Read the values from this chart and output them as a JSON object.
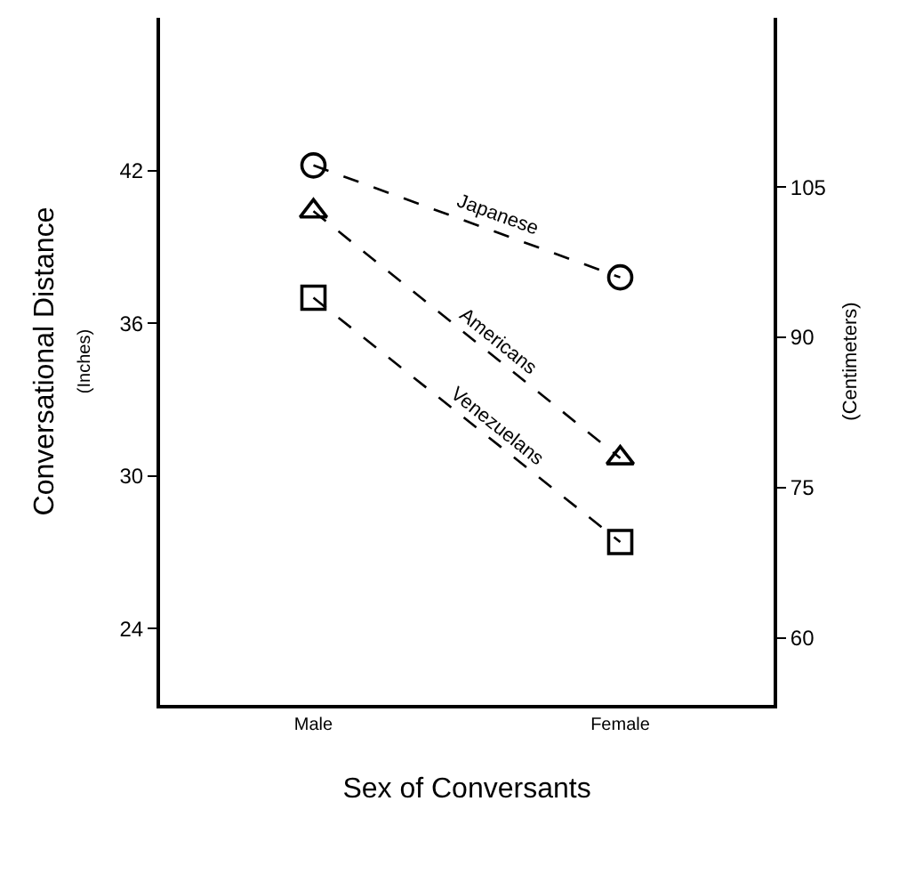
{
  "chart_data": {
    "type": "line",
    "categories": [
      "Male",
      "Female"
    ],
    "xlabel": "Sex of Conversants",
    "ylabel": "Conversational Distance\n(Inches)",
    "y2label": "(Centimeters)",
    "ylim": [
      21,
      48
    ],
    "yticks": [
      24,
      30,
      36,
      42
    ],
    "y2lim": [
      53.3,
      121.9
    ],
    "y2ticks": [
      60,
      75,
      90,
      105
    ],
    "line_style": "dashed",
    "legend": false,
    "series": [
      {
        "name": "Japanese",
        "color": "#000000",
        "marker": "circle",
        "values": [
          42.2,
          37.8
        ]
      },
      {
        "name": "Americans",
        "color": "#000000",
        "marker": "triangle",
        "values": [
          40.4,
          30.7
        ]
      },
      {
        "name": "Venezuelans",
        "color": "#000000",
        "marker": "square",
        "values": [
          37.0,
          27.4
        ]
      }
    ]
  }
}
